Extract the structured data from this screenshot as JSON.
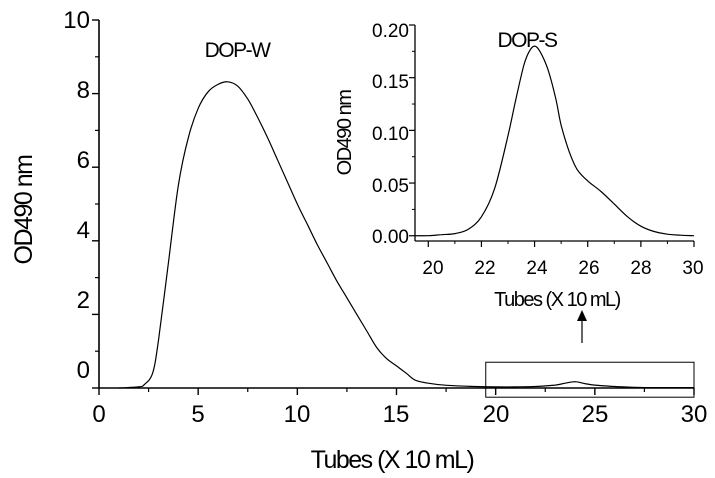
{
  "chart_data": [
    {
      "type": "line",
      "annotation": "DOP-W",
      "xlabel": "Tubes (X 10 mL)",
      "ylabel": "OD490 nm",
      "xlim": [
        0,
        30
      ],
      "ylim": [
        0,
        10
      ],
      "xticks": [
        "0",
        "5",
        "10",
        "15",
        "20",
        "25",
        "30"
      ],
      "yticks": [
        "0",
        "2",
        "4",
        "6",
        "8",
        "10"
      ],
      "grid": false,
      "series": [
        {
          "x": [
            1,
            2,
            2.3,
            2.7,
            3,
            3.5,
            4,
            4.5,
            5,
            5.5,
            6,
            6.5,
            7,
            7.5,
            8,
            8.5,
            9,
            9.5,
            10,
            10.5,
            11,
            11.5,
            12,
            12.5,
            13,
            13.5,
            14,
            14.5,
            15,
            15.5,
            16,
            17,
            18,
            19,
            20,
            21,
            22,
            23,
            23.5,
            24,
            24.5,
            25,
            26,
            27,
            28,
            29,
            30
          ],
          "y": [
            0,
            0.03,
            0.1,
            0.4,
            1.3,
            3.4,
            5.5,
            6.8,
            7.6,
            8.05,
            8.25,
            8.32,
            8.2,
            7.85,
            7.35,
            6.8,
            6.2,
            5.6,
            5.0,
            4.45,
            3.9,
            3.4,
            2.9,
            2.45,
            2.0,
            1.55,
            1.1,
            0.8,
            0.6,
            0.4,
            0.2,
            0.1,
            0.06,
            0.04,
            0.03,
            0.03,
            0.04,
            0.08,
            0.13,
            0.17,
            0.12,
            0.08,
            0.04,
            0.02,
            0.01,
            0.01,
            0.01
          ]
        }
      ],
      "inset_box": {
        "x": [
          19.5,
          30
        ],
        "y": [
          -0.25,
          0.7
        ]
      }
    },
    {
      "type": "line",
      "annotation": "DOP-S",
      "xlabel": "Tubes (X 10 mL)",
      "ylabel": "OD490 nm",
      "xlim": [
        19.5,
        30
      ],
      "ylim": [
        -0.005,
        0.2
      ],
      "xticks": [
        "20",
        "22",
        "24",
        "26",
        "28",
        "30"
      ],
      "yticks": [
        "0.00",
        "0.05",
        "0.10",
        "0.15",
        "0.20"
      ],
      "grid": false,
      "series": [
        {
          "x": [
            19.5,
            20,
            20.5,
            21,
            21.5,
            22,
            22.5,
            23,
            23.3,
            23.6,
            23.8,
            24,
            24.2,
            24.5,
            24.8,
            25,
            25.3,
            25.6,
            26,
            26.5,
            27,
            27.5,
            28,
            28.5,
            29,
            29.5,
            30
          ],
          "y": [
            0.0,
            0.0,
            0.001,
            0.002,
            0.006,
            0.018,
            0.045,
            0.095,
            0.13,
            0.162,
            0.175,
            0.18,
            0.175,
            0.158,
            0.13,
            0.105,
            0.08,
            0.063,
            0.052,
            0.042,
            0.03,
            0.018,
            0.009,
            0.004,
            0.0015,
            0.0005,
            0.0
          ]
        }
      ]
    }
  ]
}
